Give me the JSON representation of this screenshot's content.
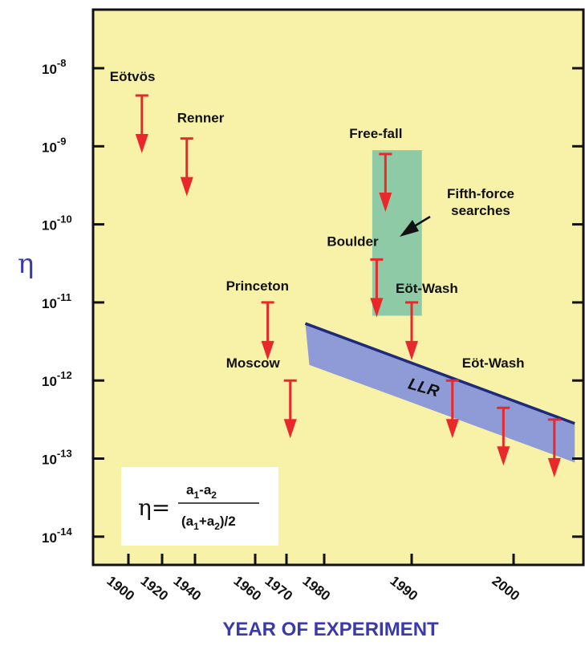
{
  "chart_data": {
    "type": "scatter",
    "title": "",
    "xlabel": "YEAR OF EXPERIMENT",
    "ylabel": "η",
    "yscale": "log",
    "y_tick_exponents": [
      -8,
      -9,
      -10,
      -11,
      -12,
      -13,
      -14
    ],
    "y_tick_base": "10",
    "x_ticks": [
      "1900",
      "1920",
      "1940",
      "1960",
      "1970",
      "1980",
      "1990",
      "2000"
    ],
    "grid": false,
    "background_color": "#f8f1a8",
    "arrow_color": "#e8282a",
    "band_color": "#8e9bd6",
    "box_color": "#8ecaa6",
    "upper_limits": [
      {
        "label": "Eötvös",
        "x": "1908",
        "eta_exp": -8.35
      },
      {
        "label": "Renner",
        "x": "1935",
        "eta_exp": -8.9
      },
      {
        "label": "Princeton",
        "x": "1964",
        "eta_exp": -11.0
      },
      {
        "label": "Moscow",
        "x": "1971",
        "eta_exp": -12.0
      },
      {
        "label": "Boulder",
        "x": "1986",
        "eta_exp": -10.45
      },
      {
        "label": "Free-fall",
        "x": "1987",
        "eta_exp": -9.1
      },
      {
        "label": "Eöt-Wash",
        "x": "1990",
        "eta_exp": -11.0
      },
      {
        "label": "Eöt-Wash",
        "x": "1994",
        "eta_exp": -12.0
      },
      {
        "label": "",
        "x": "1999",
        "eta_exp": -12.35
      },
      {
        "label": "",
        "x": "2004",
        "eta_exp": -12.5
      }
    ],
    "regions": [
      {
        "label": "Fifth-force searches",
        "kind": "box"
      },
      {
        "label": "LLR",
        "kind": "band"
      }
    ],
    "formula": {
      "lhs": "η=",
      "numerator": [
        "a",
        "1",
        "-a",
        "2"
      ],
      "denominator": [
        "(a",
        "1",
        "+a",
        "2",
        ")/2"
      ]
    }
  }
}
